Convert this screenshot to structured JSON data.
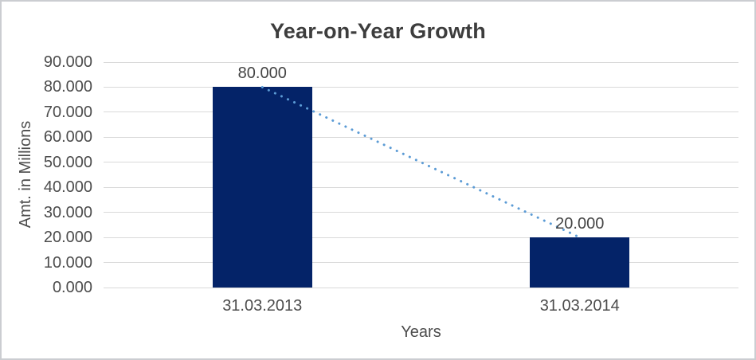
{
  "chart_data": {
    "type": "bar",
    "title": "Year-on-Year Growth",
    "xlabel": "Years",
    "ylabel": "Amt. in Millions",
    "categories": [
      "31.03.2013",
      "31.03.2014"
    ],
    "values": [
      80.0,
      20.0
    ],
    "data_labels": [
      "80.000",
      "20.000"
    ],
    "y_ticks": [
      {
        "value": 0,
        "label": "0.000"
      },
      {
        "value": 10,
        "label": "10.000"
      },
      {
        "value": 20,
        "label": "20.000"
      },
      {
        "value": 30,
        "label": "30.000"
      },
      {
        "value": 40,
        "label": "40.000"
      },
      {
        "value": 50,
        "label": "50.000"
      },
      {
        "value": 60,
        "label": "60.000"
      },
      {
        "value": 70,
        "label": "70.000"
      },
      {
        "value": 80,
        "label": "80.000"
      },
      {
        "value": 90,
        "label": "90.000"
      }
    ],
    "ylim": [
      0,
      90
    ],
    "grid": true,
    "legend": false,
    "colors": {
      "bar": "#042368",
      "trendline": "#5b9bd5",
      "gridline": "#d9d9d9",
      "title_text": "#3d3d3d",
      "tick_text": "#4c4c4c"
    },
    "trendline": {
      "style": "dotted",
      "from_value": 80.0,
      "to_value": 20.0
    }
  }
}
